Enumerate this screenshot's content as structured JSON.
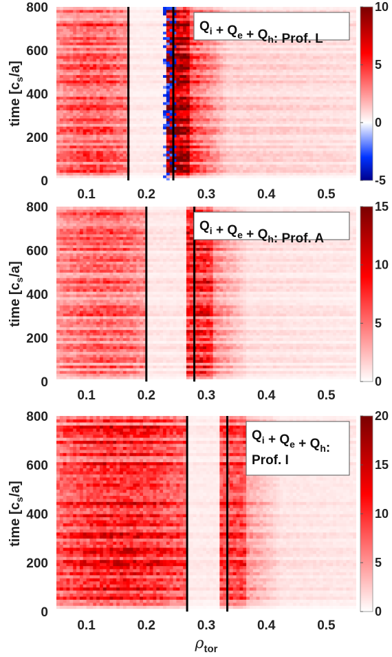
{
  "chart_data": {
    "type": "heatmap",
    "xlabel": "ρ",
    "xlabel_sub": "tor",
    "xlim": [
      0.05,
      0.55
    ],
    "x_ticks": [
      "0.1",
      "0.2",
      "0.3",
      "0.4",
      "0.5"
    ],
    "x_tick_values": [
      0.1,
      0.2,
      0.3,
      0.4,
      0.5
    ],
    "ylim": [
      0,
      800
    ],
    "panels": [
      {
        "ylabel": "time [c_s/a]",
        "y_ticks": [
          "0",
          "200",
          "400",
          "600",
          "800"
        ],
        "legend_lines": [
          "Q_i + Q_e + Q_h: Prof. L"
        ],
        "legend_placement": "top-right",
        "boundary_lines_rho": [
          0.17,
          0.245
        ],
        "colorbar": {
          "min": -5,
          "max": 10,
          "ticks": [
            "10",
            "5",
            "0",
            "-5"
          ],
          "tick_values": [
            10,
            5,
            0,
            -5
          ],
          "colormap": "blue-white-red"
        },
        "intensity": {
          "inner_region": 0.42,
          "gap_region": 0.05,
          "outer_edge": 0.85,
          "far_region": 0.12,
          "has_negative": true
        }
      },
      {
        "ylabel": "time [c_s/a]",
        "y_ticks": [
          "0",
          "200",
          "400",
          "600",
          "800"
        ],
        "legend_lines": [
          "Q_i + Q_e + Q_h: Prof. A"
        ],
        "legend_placement": "top-right",
        "boundary_lines_rho": [
          0.2,
          0.28
        ],
        "colorbar": {
          "min": 0,
          "max": 15,
          "ticks": [
            "15",
            "10",
            "5",
            "0"
          ],
          "tick_values": [
            15,
            10,
            5,
            0
          ],
          "colormap": "white-red"
        },
        "intensity": {
          "inner_region": 0.38,
          "gap_region": 0.06,
          "outer_edge": 0.55,
          "far_region": 0.08,
          "has_negative": false
        }
      },
      {
        "ylabel": "time [c_s/a]",
        "y_ticks": [
          "0",
          "200",
          "400",
          "600",
          "800"
        ],
        "legend_lines": [
          "Q_i + Q_e + Q_h:",
          "Prof. I"
        ],
        "legend_placement": "top-right",
        "boundary_lines_rho": [
          0.268,
          0.335
        ],
        "colorbar": {
          "min": 0,
          "max": 20,
          "ticks": [
            "20",
            "15",
            "10",
            "5",
            "0"
          ],
          "tick_values": [
            20,
            15,
            10,
            5,
            0
          ],
          "colormap": "white-red"
        },
        "intensity": {
          "inner_region": 0.55,
          "gap_region": 0.05,
          "outer_edge": 0.45,
          "far_region": 0.07,
          "has_negative": false
        }
      }
    ]
  },
  "colors": {
    "red_max": "#7a0000",
    "red": "#ff0000",
    "white": "#ffffff",
    "blue": "#0033ff",
    "blue_max": "#00008b",
    "boundary_line": "#000000"
  }
}
